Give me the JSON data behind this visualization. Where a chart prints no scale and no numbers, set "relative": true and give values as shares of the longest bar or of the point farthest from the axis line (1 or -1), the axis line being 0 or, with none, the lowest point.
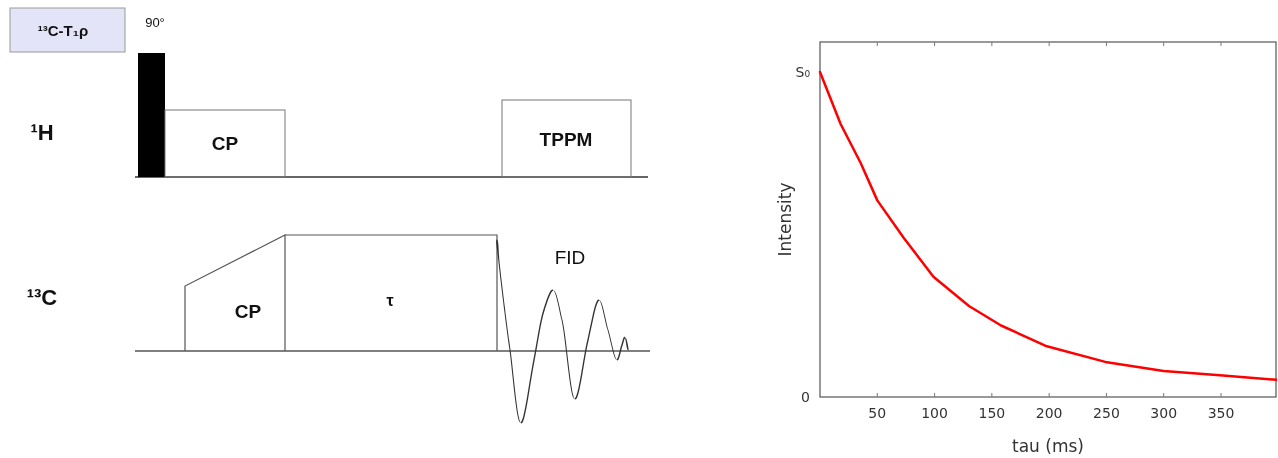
{
  "chart_data": [
    {
      "type": "other",
      "annotations": [
        "¹³C-T₁ρ",
        "90°",
        "¹H",
        "CP",
        "TPPM",
        "¹³C",
        "CP",
        "τ",
        "FID"
      ]
    },
    {
      "type": "line",
      "xlabel": "tau (ms)",
      "ylabel": "Intensity",
      "x": [
        0,
        18,
        35.5,
        50,
        73,
        99,
        130,
        158,
        198,
        249,
        300,
        349,
        398
      ],
      "series": [
        {
          "color": "#ff0000",
          "values": [
            1.0,
            0.84,
            0.72,
            0.605,
            0.49,
            0.37,
            0.28,
            0.22,
            0.156,
            0.108,
            0.08,
            0.067,
            0.053
          ]
        }
      ],
      "xlim": [
        0,
        398
      ],
      "xticks": [
        50,
        100,
        150,
        200,
        250,
        300,
        350
      ],
      "relative": true,
      "annotations": [
        "S₀",
        "0"
      ],
      "grid": false
    }
  ]
}
